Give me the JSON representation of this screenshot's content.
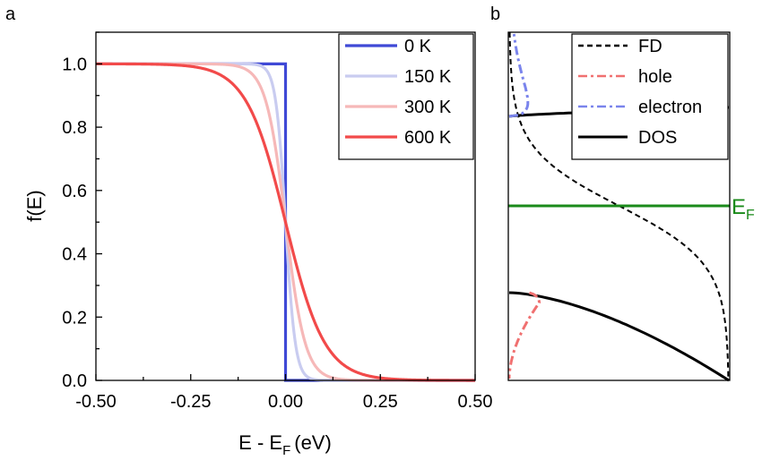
{
  "chart_data": [
    {
      "panel_label": "a",
      "type": "line",
      "xlabel": "E - E",
      "xlabel_sub": "F",
      "xlabel_unit": "(eV)",
      "ylabel": "f(E)",
      "xlim": [
        -0.5,
        0.5
      ],
      "ylim": [
        0,
        1.1
      ],
      "xticks": [
        "-0.50",
        "-0.25",
        "0.00",
        "0.25",
        "0.50"
      ],
      "yticks": [
        "0.0",
        "0.2",
        "0.4",
        "0.6",
        "0.8",
        "1.0"
      ],
      "legend_position": "top-right",
      "series": [
        {
          "name": "0 K",
          "temperature_K": 0,
          "color": "#3f49d6"
        },
        {
          "name": "150 K",
          "temperature_K": 150,
          "color": "#c9ccf0"
        },
        {
          "name": "300 K",
          "temperature_K": 300,
          "color": "#f6b8b8"
        },
        {
          "name": "600 K",
          "temperature_K": 600,
          "color": "#f24a4a"
        }
      ]
    },
    {
      "panel_label": "b",
      "type": "line",
      "annotation": "E",
      "annotation_sub": "F",
      "annotation_color": "#1a8a1a",
      "legend_position": "top-right",
      "series": [
        {
          "name": "FD",
          "color": "#000000",
          "style": "dashed"
        },
        {
          "name": "hole",
          "color": "#f07070",
          "style": "dash-dot"
        },
        {
          "name": "electron",
          "color": "#7a84ec",
          "style": "dash-dot"
        },
        {
          "name": "DOS",
          "color": "#000000",
          "style": "solid"
        }
      ]
    }
  ]
}
